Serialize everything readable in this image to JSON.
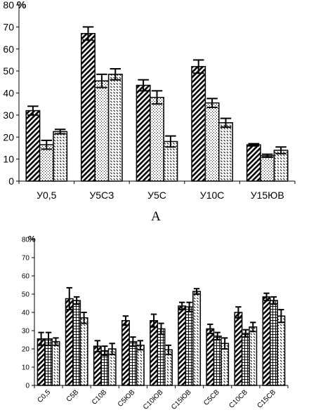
{
  "chart_data": [
    {
      "type": "bar",
      "panel_label": "A",
      "unit": "%",
      "ylim": [
        0,
        80
      ],
      "yticks": [
        0,
        10,
        20,
        30,
        40,
        50,
        60,
        70,
        80
      ],
      "grid": false,
      "categories": [
        "У0,5",
        "У5СЗ",
        "У5С",
        "У10С",
        "У15ЮВ"
      ],
      "series": [
        {
          "pattern": "diagonal-hatch",
          "values": [
            32,
            67,
            43.5,
            52,
            16.5
          ],
          "errors": [
            2,
            3,
            2.5,
            3,
            0.5
          ]
        },
        {
          "pattern": "dotted",
          "values": [
            16.5,
            45.5,
            38,
            35.5,
            11.5
          ],
          "errors": [
            2,
            3,
            3,
            2,
            0.7
          ]
        },
        {
          "pattern": "dashed-hatch",
          "values": [
            22.5,
            48.5,
            18,
            26.5,
            14
          ],
          "errors": [
            1,
            2.5,
            2.5,
            2,
            1.5
          ]
        }
      ]
    },
    {
      "type": "bar",
      "unit": "%",
      "ylim": [
        0,
        80
      ],
      "yticks": [
        0,
        10,
        20,
        30,
        40,
        50,
        60,
        70,
        80
      ],
      "grid": false,
      "categories": [
        "С0,5",
        "С5В",
        "С10В",
        "С5ЮВ",
        "С10ЮВ",
        "С15ЮВ",
        "С5СВ",
        "С10СВ",
        "С15СВ"
      ],
      "series": [
        {
          "pattern": "diagonal-hatch",
          "values": [
            25.5,
            47.5,
            21.5,
            35.5,
            35.5,
            43.5,
            31,
            40,
            48.5
          ],
          "errors": [
            3.5,
            6,
            3,
            2.5,
            3.5,
            2,
            2.5,
            3,
            2
          ]
        },
        {
          "pattern": "grid-hatch",
          "values": [
            25.5,
            46.5,
            19,
            24,
            31,
            43,
            27,
            28.5,
            46.5
          ],
          "errors": [
            3.5,
            2,
            2.5,
            2.5,
            3,
            2.5,
            2,
            2,
            2
          ]
        },
        {
          "pattern": "dashed-hatch",
          "values": [
            24,
            37,
            20,
            22,
            19.5,
            51.5,
            23,
            32,
            38
          ],
          "errors": [
            2,
            3,
            3,
            2.5,
            2.5,
            1.5,
            3,
            2.5,
            3.5
          ]
        }
      ]
    }
  ]
}
